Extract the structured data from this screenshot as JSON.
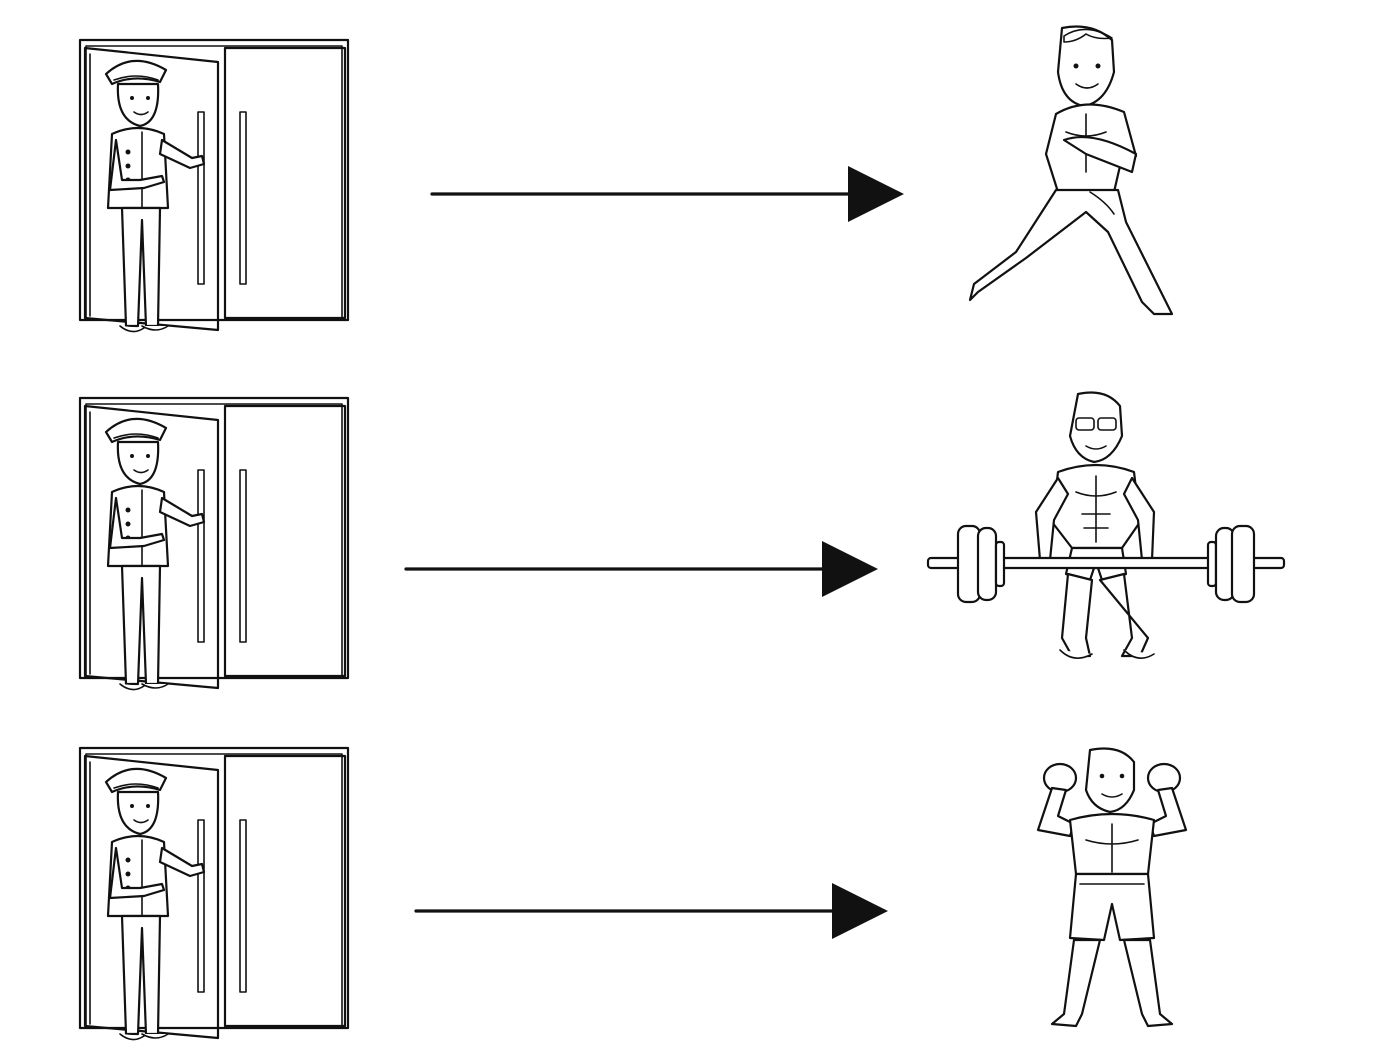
{
  "diagram": {
    "rows": [
      {
        "source": {
          "icon": "doorman-icon",
          "description_id": "doorman"
        },
        "target": {
          "icon": "martial-artist-icon"
        }
      },
      {
        "source": {
          "icon": "doorman-icon",
          "description_id": "doorman"
        },
        "target": {
          "icon": "weightlifter-icon"
        }
      },
      {
        "source": {
          "icon": "doorman-icon",
          "description_id": "doorman"
        },
        "target": {
          "icon": "boxer-icon"
        }
      }
    ],
    "colors": {
      "stroke": "#111111",
      "background": "#ffffff"
    }
  }
}
